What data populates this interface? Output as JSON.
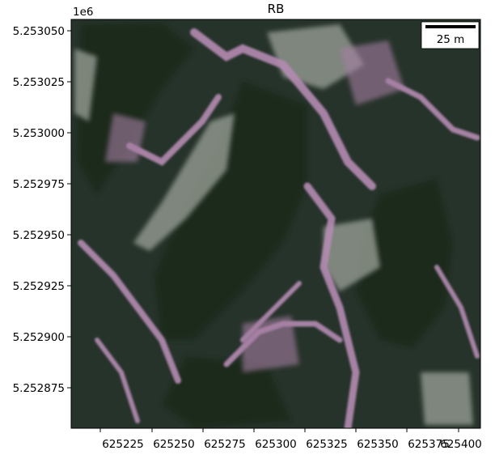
{
  "title": "RB",
  "y_offset_label": "1e6",
  "scalebar": {
    "label": "25 m"
  },
  "x_axis": {
    "ticks": [
      "625225",
      "625250",
      "625275",
      "625300",
      "625325",
      "625350",
      "625375",
      "625400"
    ]
  },
  "y_axis": {
    "ticks": [
      "5.253050",
      "5.253025",
      "5.253000",
      "5.252975",
      "5.252950",
      "5.252925",
      "5.252900",
      "5.252875"
    ]
  },
  "colors": {
    "vegetation_dark": "#1d2d20",
    "vegetation_mid": "#2b3a2b",
    "pink_rock": "#b88bb5",
    "gray_rock": "#9aa097",
    "frame": "#000000"
  }
}
